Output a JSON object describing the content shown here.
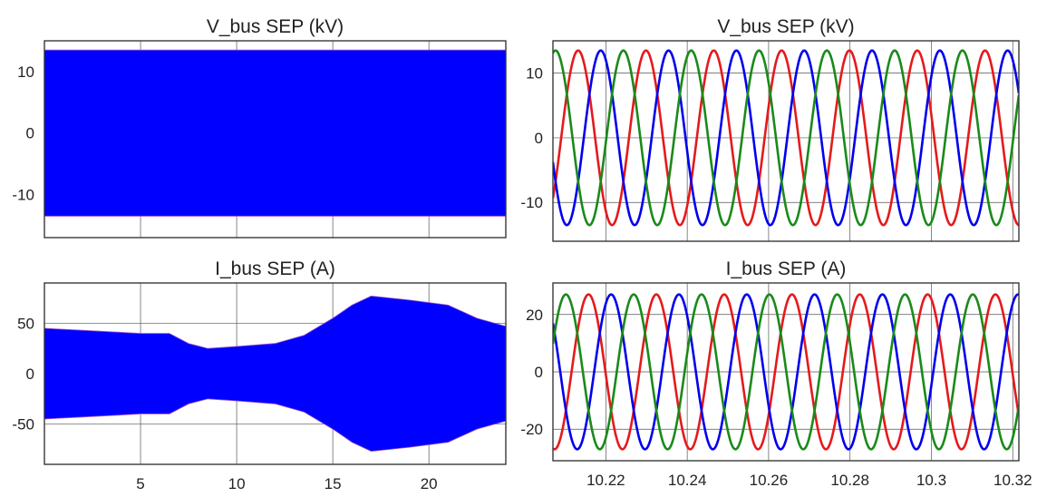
{
  "chart_data": [
    {
      "type": "line",
      "title": "V_bus SEP (kV)",
      "xlabel": "",
      "ylabel": "",
      "xlim": [
        0,
        24
      ],
      "ylim": [
        -17,
        15
      ],
      "xticks": [
        5,
        10,
        15,
        20
      ],
      "xtick_labels": [
        "",
        "",
        "",
        ""
      ],
      "yticks": [
        -10,
        0,
        10
      ],
      "ytick_labels": [
        "-10",
        "0",
        "10"
      ],
      "grid": true,
      "series": [
        {
          "color": "#0000ff",
          "envelope": {
            "x": [
              0,
              24
            ],
            "upper": [
              13.5,
              13.5
            ],
            "lower": [
              -13.5,
              -13.5
            ]
          }
        }
      ]
    },
    {
      "type": "line",
      "title": "I_bus SEP (A)",
      "xlabel": "",
      "ylabel": "",
      "xlim": [
        0,
        24
      ],
      "ylim": [
        -90,
        90
      ],
      "xticks": [
        5,
        10,
        15,
        20
      ],
      "xtick_labels": [
        "5",
        "10",
        "15",
        "20"
      ],
      "yticks": [
        -50,
        0,
        50
      ],
      "ytick_labels": [
        "-50",
        "0",
        "50"
      ],
      "grid": true,
      "series": [
        {
          "color": "#0000ff",
          "envelope": {
            "x": [
              0,
              3,
              5,
              6.5,
              7.5,
              8.5,
              10,
              12,
              13.5,
              15,
              16,
              17,
              19,
              21,
              22.5,
              24
            ],
            "upper": [
              45,
              42,
              40,
              40,
              30,
              25,
              27,
              30,
              38,
              55,
              68,
              77,
              73,
              68,
              55,
              47
            ],
            "lower": [
              -45,
              -42,
              -40,
              -40,
              -30,
              -25,
              -27,
              -30,
              -38,
              -55,
              -68,
              -77,
              -73,
              -68,
              -55,
              -47
            ]
          }
        }
      ]
    },
    {
      "type": "line",
      "title": "V_bus SEP (kV)",
      "xlabel": "",
      "ylabel": "",
      "xlim": [
        10.207,
        10.3215
      ],
      "ylim": [
        -16,
        15
      ],
      "xticks": [
        10.22,
        10.24,
        10.26,
        10.28,
        10.3,
        10.32
      ],
      "xtick_labels": [
        "",
        "",
        "",
        "",
        "",
        ""
      ],
      "yticks": [
        -10,
        0,
        10
      ],
      "ytick_labels": [
        "-10",
        "0",
        "10"
      ],
      "grid": true,
      "series": [
        {
          "color": "#e41a1c",
          "amplitude": 13.5,
          "frequency_hz": 60,
          "phase_deg": 165
        },
        {
          "color": "#0000ee",
          "amplitude": 13.5,
          "frequency_hz": 60,
          "phase_deg": 45
        },
        {
          "color": "#1a8a1a",
          "amplitude": 13.5,
          "frequency_hz": 60,
          "phase_deg": -75
        }
      ]
    },
    {
      "type": "line",
      "title": "I_bus SEP (A)",
      "xlabel": "",
      "ylabel": "",
      "xlim": [
        10.207,
        10.3215
      ],
      "ylim": [
        -31,
        31
      ],
      "xticks": [
        10.22,
        10.24,
        10.26,
        10.28,
        10.3,
        10.32
      ],
      "xtick_labels": [
        "10.22",
        "10.24",
        "10.26",
        "10.28",
        "10.3",
        "10.32"
      ],
      "yticks": [
        -20,
        0,
        20
      ],
      "ytick_labels": [
        "-20",
        "0",
        "20"
      ],
      "grid": true,
      "series": [
        {
          "color": "#e41a1c",
          "amplitude": 27,
          "frequency_hz": 60,
          "phase_deg": 110
        },
        {
          "color": "#0000ee",
          "amplitude": 27,
          "frequency_hz": 60,
          "phase_deg": -10
        },
        {
          "color": "#1a8a1a",
          "amplitude": 27,
          "frequency_hz": 60,
          "phase_deg": -130
        }
      ]
    }
  ]
}
